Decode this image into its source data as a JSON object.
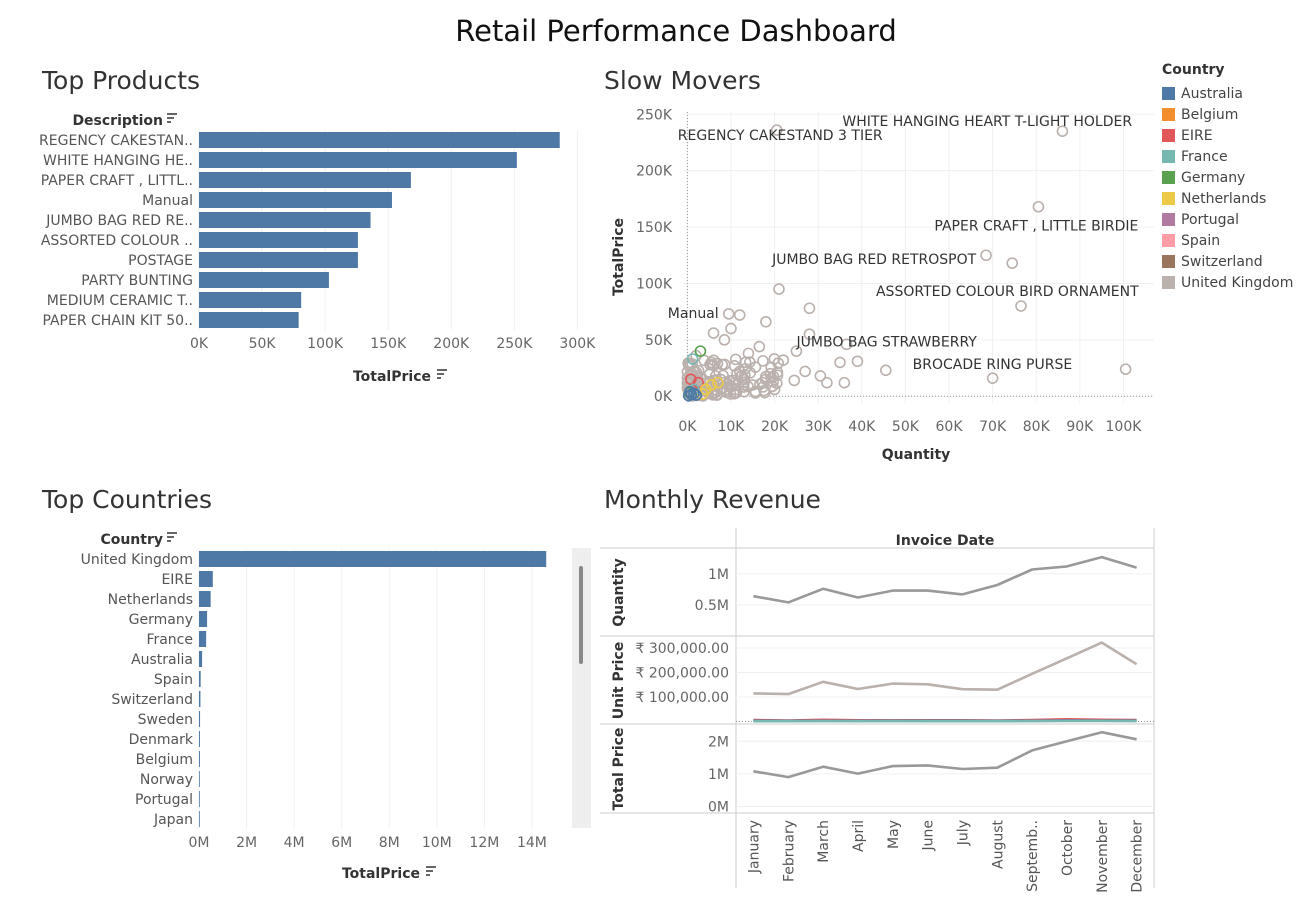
{
  "dashboard": {
    "title": "Retail Performance Dashboard"
  },
  "panels": {
    "top_products": "Top Products",
    "slow_movers": "Slow Movers",
    "top_countries": "Top Countries",
    "monthly_revenue": "Monthly Revenue"
  },
  "legend": {
    "title": "Country",
    "items": [
      {
        "label": "Australia",
        "color": "#4e79a7"
      },
      {
        "label": "Belgium",
        "color": "#f28e2b"
      },
      {
        "label": "EIRE",
        "color": "#e15759"
      },
      {
        "label": "France",
        "color": "#76b7b2"
      },
      {
        "label": "Germany",
        "color": "#59a14f"
      },
      {
        "label": "Netherlands",
        "color": "#edc948"
      },
      {
        "label": "Portugal",
        "color": "#b07aa1"
      },
      {
        "label": "Spain",
        "color": "#ff9da7"
      },
      {
        "label": "Switzerland",
        "color": "#9c755f"
      },
      {
        "label": "United Kingdom",
        "color": "#bab0ac"
      }
    ]
  },
  "chart_data": [
    {
      "id": "top_products",
      "type": "bar",
      "orientation": "horizontal",
      "dimension_label": "Description",
      "xlabel": "TotalPrice",
      "categories": [
        "REGENCY CAKESTAN..",
        "WHITE HANGING HE..",
        "PAPER CRAFT , LITTL..",
        "Manual",
        "JUMBO BAG RED RE..",
        "ASSORTED COLOUR ..",
        "POSTAGE",
        "PARTY BUNTING",
        "MEDIUM CERAMIC T..",
        "PAPER CHAIN KIT 50.."
      ],
      "values": [
        286000,
        252000,
        168000,
        153000,
        136000,
        126000,
        126000,
        103000,
        81000,
        79000
      ],
      "xticks": [
        0,
        50000,
        100000,
        150000,
        200000,
        250000,
        300000
      ],
      "xtick_labels": [
        "0K",
        "50K",
        "100K",
        "150K",
        "200K",
        "250K",
        "300K"
      ],
      "xlim": [
        0,
        310000
      ],
      "bar_color": "#4e79a7"
    },
    {
      "id": "slow_movers",
      "type": "scatter",
      "xlabel": "Quantity",
      "ylabel": "TotalPrice",
      "xticks": [
        0,
        10000,
        20000,
        30000,
        40000,
        50000,
        60000,
        70000,
        80000,
        90000,
        100000
      ],
      "xtick_labels": [
        "0K",
        "10K",
        "20K",
        "30K",
        "40K",
        "50K",
        "60K",
        "70K",
        "80K",
        "90K",
        "100K"
      ],
      "yticks": [
        0,
        50000,
        100000,
        150000,
        200000,
        250000
      ],
      "ytick_labels": [
        "0K",
        "50K",
        "100K",
        "150K",
        "200K",
        "250K"
      ],
      "xlim": [
        -1000,
        107000
      ],
      "ylim": [
        -6000,
        252000
      ],
      "labeled_points": [
        {
          "label": "WHITE HANGING HEART T-LIGHT HOLDER",
          "x": 86000,
          "y": 235000,
          "country": "United Kingdom"
        },
        {
          "label": "REGENCY CAKESTAND 3 TIER",
          "x": 20500,
          "y": 236000,
          "country": "United Kingdom"
        },
        {
          "label": "PAPER CRAFT , LITTLE BIRDIE",
          "x": 80500,
          "y": 168000,
          "country": "United Kingdom"
        },
        {
          "label": "JUMBO BAG RED RETROSPOT",
          "x": 68500,
          "y": 125000,
          "country": "United Kingdom"
        },
        {
          "label": "ASSORTED COLOUR BIRD ORNAMENT",
          "x": 76500,
          "y": 80000,
          "country": "United Kingdom"
        },
        {
          "label": "Manual",
          "x": 9500,
          "y": 73000,
          "country": "United Kingdom"
        },
        {
          "label": "JUMBO BAG STRAWBERRY",
          "x": 36500,
          "y": 46000,
          "country": "United Kingdom"
        },
        {
          "label": "BROCADE RING PURSE",
          "x": 70000,
          "y": 16000,
          "country": "United Kingdom"
        }
      ],
      "points": [
        {
          "x": 74500,
          "y": 118000,
          "country": "United Kingdom"
        },
        {
          "x": 100500,
          "y": 24000,
          "country": "United Kingdom"
        },
        {
          "x": 21000,
          "y": 95000,
          "country": "United Kingdom"
        },
        {
          "x": 28000,
          "y": 78000,
          "country": "United Kingdom"
        },
        {
          "x": 12000,
          "y": 72000,
          "country": "United Kingdom"
        },
        {
          "x": 18000,
          "y": 66000,
          "country": "United Kingdom"
        },
        {
          "x": 10000,
          "y": 60000,
          "country": "United Kingdom"
        },
        {
          "x": 6000,
          "y": 56000,
          "country": "United Kingdom"
        },
        {
          "x": 8500,
          "y": 50000,
          "country": "United Kingdom"
        },
        {
          "x": 28000,
          "y": 55000,
          "country": "United Kingdom"
        },
        {
          "x": 39000,
          "y": 31000,
          "country": "United Kingdom"
        },
        {
          "x": 45500,
          "y": 23000,
          "country": "United Kingdom"
        },
        {
          "x": 35000,
          "y": 30000,
          "country": "United Kingdom"
        },
        {
          "x": 32000,
          "y": 12000,
          "country": "United Kingdom"
        },
        {
          "x": 36000,
          "y": 12000,
          "country": "United Kingdom"
        },
        {
          "x": 25000,
          "y": 40000,
          "country": "United Kingdom"
        },
        {
          "x": 16500,
          "y": 44000,
          "country": "United Kingdom"
        },
        {
          "x": 22000,
          "y": 32000,
          "country": "United Kingdom"
        },
        {
          "x": 14000,
          "y": 38000,
          "country": "United Kingdom"
        },
        {
          "x": 19000,
          "y": 20000,
          "country": "United Kingdom"
        },
        {
          "x": 12000,
          "y": 22000,
          "country": "United Kingdom"
        },
        {
          "x": 8000,
          "y": 28000,
          "country": "United Kingdom"
        },
        {
          "x": 6500,
          "y": 18000,
          "country": "United Kingdom"
        },
        {
          "x": 4500,
          "y": 12000,
          "country": "United Kingdom"
        },
        {
          "x": 3000,
          "y": 8000,
          "country": "United Kingdom"
        },
        {
          "x": 15000,
          "y": 10000,
          "country": "United Kingdom"
        },
        {
          "x": 20000,
          "y": 6000,
          "country": "United Kingdom"
        },
        {
          "x": 24500,
          "y": 14000,
          "country": "United Kingdom"
        },
        {
          "x": 27000,
          "y": 22000,
          "country": "United Kingdom"
        },
        {
          "x": 30500,
          "y": 18000,
          "country": "United Kingdom"
        },
        {
          "x": 10500,
          "y": 14000,
          "country": "United Kingdom"
        },
        {
          "x": 2000,
          "y": 36000,
          "country": "United Kingdom"
        },
        {
          "x": 1500,
          "y": 22000,
          "country": "United Kingdom"
        },
        {
          "x": 5500,
          "y": 30000,
          "country": "United Kingdom"
        },
        {
          "x": 9000,
          "y": 6000,
          "country": "United Kingdom"
        },
        {
          "x": 13000,
          "y": 4000,
          "country": "United Kingdom"
        },
        {
          "x": 3000,
          "y": 40000,
          "country": "Germany"
        },
        {
          "x": 1200,
          "y": 33000,
          "country": "France"
        },
        {
          "x": 2500,
          "y": 12000,
          "country": "EIRE"
        },
        {
          "x": 800,
          "y": 15000,
          "country": "EIRE"
        },
        {
          "x": 4200,
          "y": 6000,
          "country": "Netherlands"
        },
        {
          "x": 5500,
          "y": 10000,
          "country": "Netherlands"
        },
        {
          "x": 7000,
          "y": 12000,
          "country": "Netherlands"
        },
        {
          "x": 3500,
          "y": 2000,
          "country": "Netherlands"
        },
        {
          "x": 1500,
          "y": 6000,
          "country": "France"
        },
        {
          "x": 500,
          "y": 3000,
          "country": "Germany"
        },
        {
          "x": 300,
          "y": 500,
          "country": "Australia"
        },
        {
          "x": 900,
          "y": 1500,
          "country": "Australia"
        },
        {
          "x": 1500,
          "y": 2500,
          "country": "Australia"
        },
        {
          "x": 2000,
          "y": 1000,
          "country": "Australia"
        },
        {
          "x": 600,
          "y": 4000,
          "country": "Australia"
        }
      ]
    },
    {
      "id": "top_countries",
      "type": "bar",
      "orientation": "horizontal",
      "dimension_label": "Country",
      "xlabel": "TotalPrice",
      "categories": [
        "United Kingdom",
        "EIRE",
        "Netherlands",
        "Germany",
        "France",
        "Australia",
        "Spain",
        "Switzerland",
        "Sweden",
        "Denmark",
        "Belgium",
        "Norway",
        "Portugal",
        "Japan"
      ],
      "values": [
        14600000,
        580000,
        490000,
        340000,
        300000,
        130000,
        70000,
        60000,
        45000,
        40000,
        40000,
        30000,
        25000,
        20000
      ],
      "xticks": [
        0,
        2000000,
        4000000,
        6000000,
        8000000,
        10000000,
        12000000,
        14000000
      ],
      "xtick_labels": [
        "0M",
        "2M",
        "4M",
        "6M",
        "8M",
        "10M",
        "12M",
        "14M"
      ],
      "xlim": [
        0,
        15600000
      ],
      "bar_color": "#4e79a7"
    },
    {
      "id": "monthly_revenue",
      "type": "line",
      "column_header": "Invoice Date",
      "categories": [
        "January",
        "February",
        "March",
        "April",
        "May",
        "June",
        "July",
        "August",
        "Septemb..",
        "October",
        "November",
        "December"
      ],
      "panes": [
        {
          "label": "Quantity",
          "yticks": [
            500000,
            1000000
          ],
          "ytick_labels": [
            "0.5M",
            "1M"
          ],
          "ylim": [
            0,
            1400000
          ],
          "series": [
            {
              "values": [
                640000,
                540000,
                760000,
                620000,
                730000,
                730000,
                670000,
                820000,
                1070000,
                1120000,
                1270000,
                1100000
              ],
              "color": "#999999"
            }
          ]
        },
        {
          "label": "Unit Price",
          "yticks": [
            100000,
            200000,
            300000
          ],
          "ytick_labels": [
            "₹ 100,000.00",
            "₹ 200,000.00",
            "₹ 300,000.00"
          ],
          "ylim": [
            -10000,
            345000
          ],
          "series": [
            {
              "values": [
                115000,
                112000,
                162000,
                133000,
                155000,
                152000,
                132000,
                130000,
                195000,
                258000,
                322000,
                234000
              ],
              "color": "#bab0ac"
            },
            {
              "values": [
                6000,
                4000,
                7000,
                5000,
                5000,
                5000,
                5000,
                4000,
                6000,
                9000,
                7000,
                6000
              ],
              "color": "#e15759"
            },
            {
              "values": [
                3000,
                2500,
                3000,
                2500,
                3000,
                3000,
                3000,
                2500,
                3000,
                4000,
                3500,
                3500
              ],
              "color": "#4e79a7"
            },
            {
              "values": [
                1500,
                1500,
                2000,
                1500,
                2000,
                1500,
                1500,
                1500,
                2000,
                2500,
                2500,
                2000
              ],
              "color": "#76b7b2"
            }
          ]
        },
        {
          "label": "Total Price",
          "yticks": [
            0,
            1000000,
            2000000
          ],
          "ytick_labels": [
            "0M",
            "1M",
            "2M"
          ],
          "ylim": [
            -200000,
            2500000
          ],
          "series": [
            {
              "values": [
                1080000,
                900000,
                1220000,
                1010000,
                1240000,
                1260000,
                1150000,
                1190000,
                1720000,
                2000000,
                2280000,
                2060000
              ],
              "color": "#999999"
            }
          ]
        }
      ]
    }
  ]
}
